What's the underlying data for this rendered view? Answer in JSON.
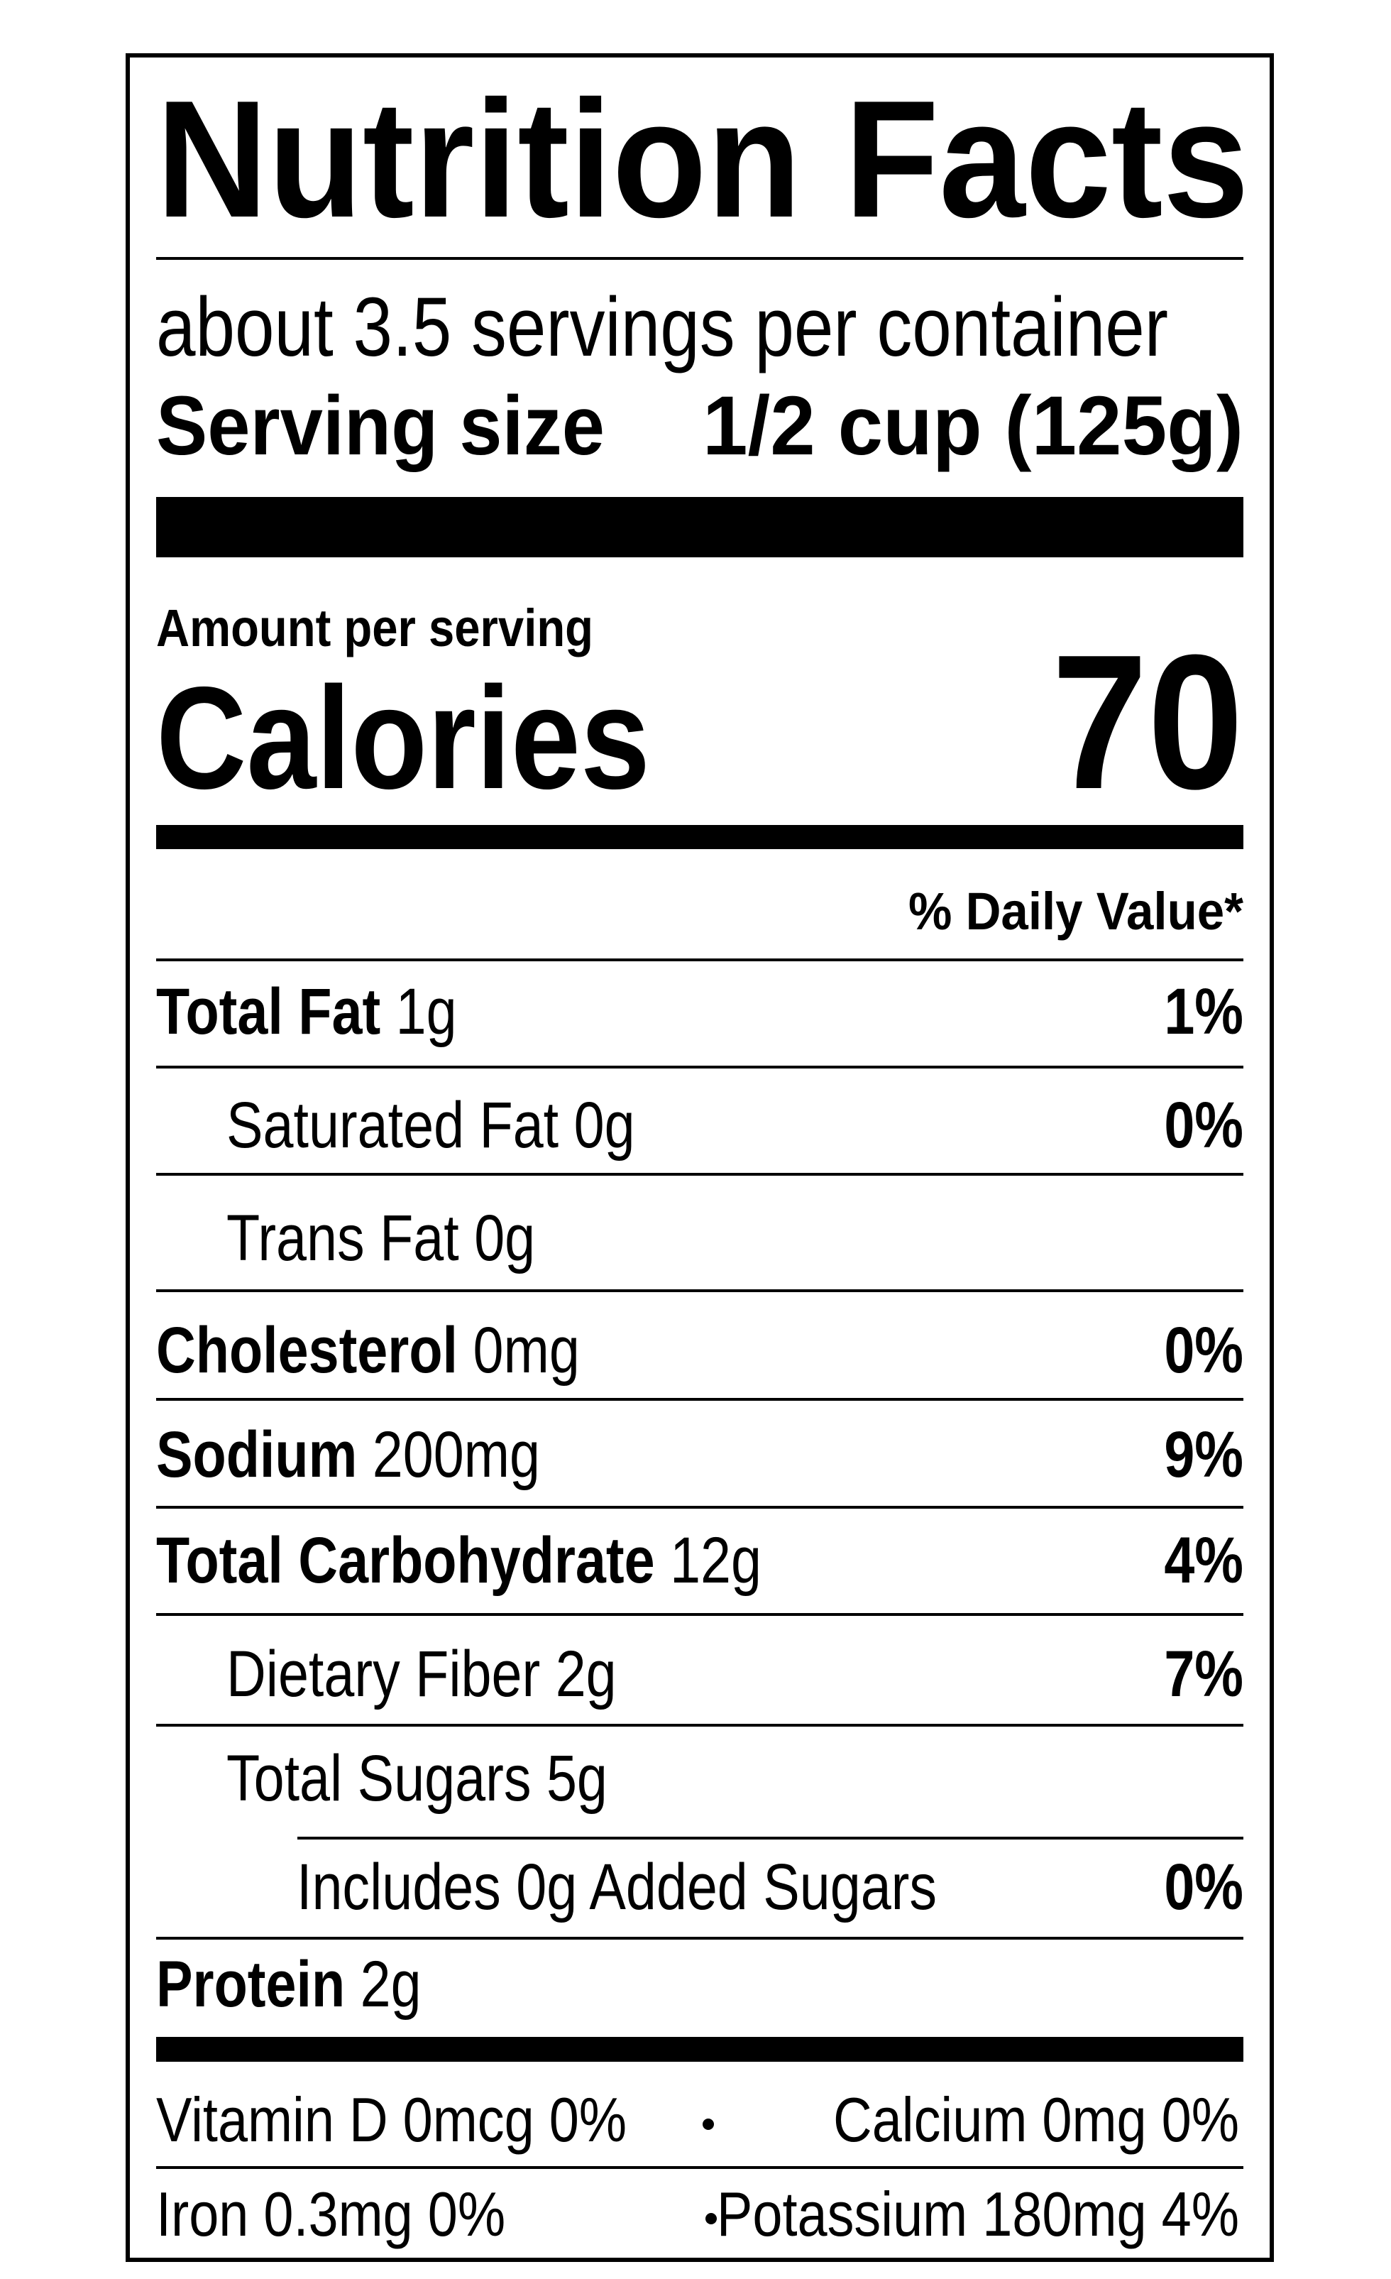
{
  "title": "Nutrition Facts",
  "servings_per_container": "about 3.5 servings per container",
  "serving_size": {
    "label": "Serving size",
    "value": "1/2 cup (125g)"
  },
  "amount_per_serving": "Amount per serving",
  "calories": {
    "label": "Calories",
    "value": 70
  },
  "daily_value_header": "% Daily Value*",
  "nutrients": [
    {
      "name": "Total Fat",
      "amount": "1g",
      "daily_value": "1%"
    },
    {
      "name": "Saturated Fat",
      "amount": "0g",
      "daily_value": "0%"
    },
    {
      "name": "Trans Fat",
      "amount": "0g"
    },
    {
      "name": "Cholesterol",
      "amount": "0mg",
      "daily_value": "0%"
    },
    {
      "name": "Sodium",
      "amount": "200mg",
      "daily_value": "9%"
    },
    {
      "name": "Total Carbohydrate",
      "amount": "12g",
      "daily_value": "4%"
    },
    {
      "name": "Dietary Fiber",
      "amount": "2g",
      "daily_value": "7%"
    },
    {
      "name": "Total Sugars",
      "amount": "5g"
    },
    {
      "name": "Includes 0g Added Sugars",
      "daily_value": "0%"
    },
    {
      "name": "Protein",
      "amount": "2g"
    }
  ],
  "micronutrients": [
    [
      "Vitamin D 0mcg 0%",
      "Calcium 0mg 0%"
    ],
    [
      "Iron 0.3mg 0%",
      "Potassium 180mg 4%"
    ]
  ]
}
